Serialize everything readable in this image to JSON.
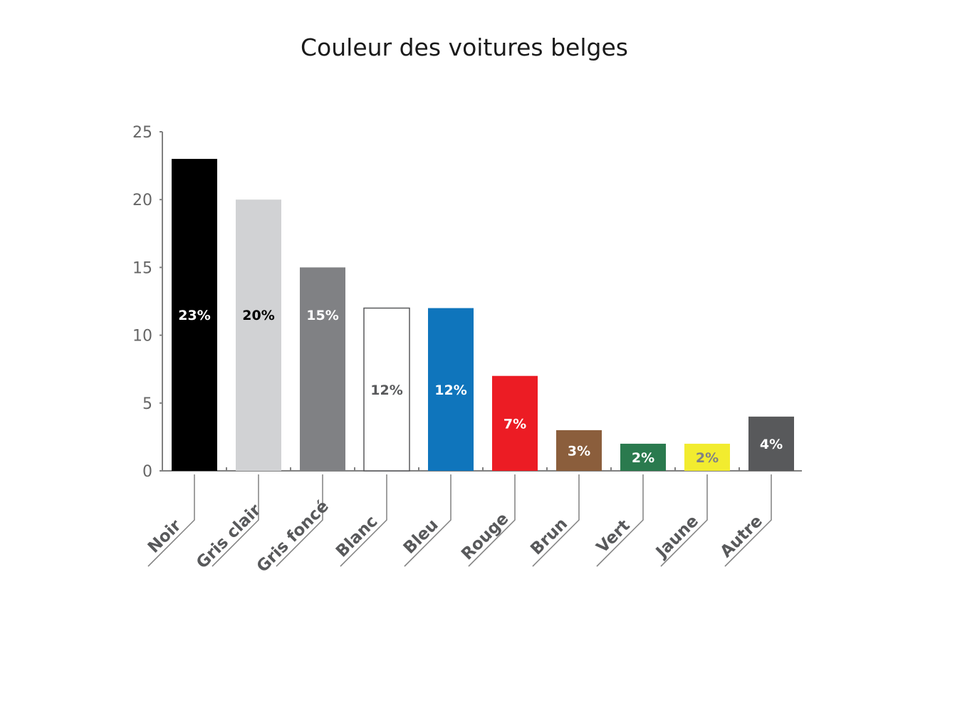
{
  "chart_data": {
    "type": "bar",
    "title": "Couleur des voitures belges",
    "xlabel": "",
    "ylabel": "",
    "ylim": [
      0,
      25
    ],
    "yticks": [
      0,
      5,
      10,
      15,
      20,
      25
    ],
    "grid": false,
    "legend": "none",
    "categories": [
      "Noir",
      "Gris clair",
      "Gris foncé",
      "Blanc",
      "Bleu",
      "Rouge",
      "Brun",
      "Vert",
      "Jaune",
      "Autre"
    ],
    "values": [
      23,
      20,
      15,
      12,
      12,
      7,
      3,
      2,
      2,
      4
    ],
    "data_labels": [
      "23%",
      "20%",
      "15%",
      "12%",
      "12%",
      "7%",
      "3%",
      "2%",
      "2%",
      "4%"
    ],
    "colors": [
      "#000000",
      "#d1d2d4",
      "#808184",
      "#ffffff",
      "#0f75bc",
      "#ec1c24",
      "#8b5e3c",
      "#2a7a4e",
      "#f2ec2f",
      "#58595b"
    ],
    "label_colors": [
      "#ffffff",
      "#000000",
      "#ffffff",
      "#58595b",
      "#ffffff",
      "#ffffff",
      "#ffffff",
      "#ffffff",
      "#808184",
      "#ffffff"
    ]
  }
}
